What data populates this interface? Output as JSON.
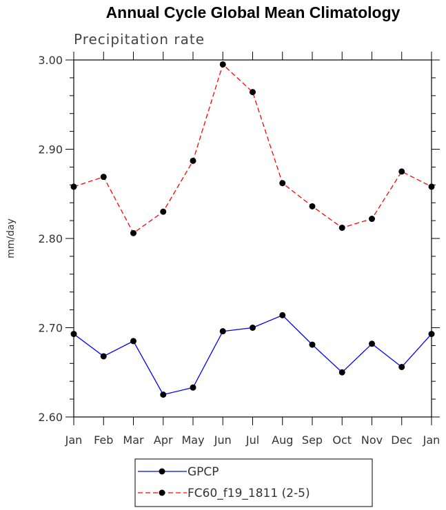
{
  "chart_data": {
    "type": "line",
    "title": "Annual Cycle Global Mean Climatology",
    "subtitle": "Precipitation rate",
    "xlabel": "",
    "ylabel": "mm/day",
    "categories": [
      "Jan",
      "Feb",
      "Mar",
      "Apr",
      "May",
      "Jun",
      "Jul",
      "Aug",
      "Sep",
      "Oct",
      "Nov",
      "Dec",
      "Jan"
    ],
    "ylim": [
      2.6,
      3.0
    ],
    "yticks": [
      "2.60",
      "2.70",
      "2.80",
      "2.90",
      "3.00"
    ],
    "ytick_values": [
      2.6,
      2.7,
      2.8,
      2.9,
      3.0
    ],
    "series": [
      {
        "name": "GPCP",
        "color": "#0000ff",
        "style": "solid",
        "values": [
          2.693,
          2.668,
          2.685,
          2.625,
          2.633,
          2.696,
          2.7,
          2.714,
          2.681,
          2.65,
          2.682,
          2.656,
          2.693
        ]
      },
      {
        "name": "FC60_f19_1811 (2-5)",
        "color": "#ff0000",
        "style": "dashed",
        "values": [
          2.858,
          2.869,
          2.806,
          2.83,
          2.887,
          2.995,
          2.964,
          2.862,
          2.836,
          2.812,
          2.822,
          2.875,
          2.858
        ]
      }
    ],
    "legend": "bottom-center",
    "grid": false
  }
}
